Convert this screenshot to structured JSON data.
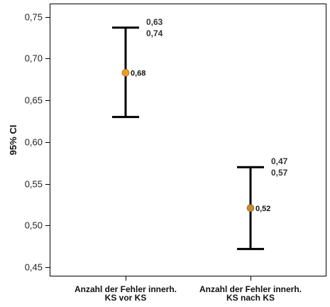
{
  "chart_data": {
    "type": "errorbar",
    "ylabel": "95% CI",
    "ylim": [
      0.44,
      0.765
    ],
    "yticks": [
      0.45,
      0.5,
      0.55,
      0.6,
      0.65,
      0.7,
      0.75
    ],
    "ytick_labels": [
      "0,45",
      "0,50",
      "0,55",
      "0,60",
      "0,65",
      "0,70",
      "0,75"
    ],
    "grid": false,
    "categories": [
      [
        "Anzahl der Fehler innerh.",
        "KS vor KS"
      ],
      [
        "Anzahl der Fehler innerh.",
        "KS nach KS"
      ]
    ],
    "points": [
      {
        "mean": 0.683,
        "lower": 0.63,
        "upper": 0.737,
        "mean_label": "0,68",
        "annot_top": "0,63",
        "annot_bottom": "0,74",
        "color": "#f39b1f"
      },
      {
        "mean": 0.521,
        "lower": 0.472,
        "upper": 0.57,
        "mean_label": "0,52",
        "annot_top": "0,47",
        "annot_bottom": "0,57",
        "color": "#cc8a2e"
      }
    ]
  }
}
